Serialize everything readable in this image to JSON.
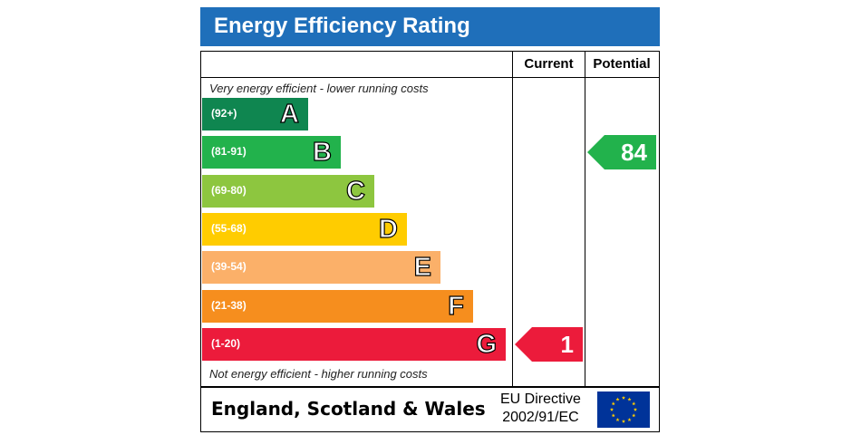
{
  "title": "Energy Efficiency Rating",
  "columns": {
    "current": "Current",
    "potential": "Potential"
  },
  "top_note": "Very energy efficient - lower running costs",
  "bottom_note": "Not energy efficient - higher running costs",
  "colors": {
    "title_bar": "#1f6fba",
    "A": "#0f8650",
    "B": "#22b24c",
    "C": "#8dc63f",
    "D": "#ffcc00",
    "E": "#fbb069",
    "F": "#f68e1e",
    "G": "#ec1b3b"
  },
  "chart_data": {
    "type": "bar",
    "categories": [
      "A",
      "B",
      "C",
      "D",
      "E",
      "F",
      "G"
    ],
    "ranges": [
      "(92+)",
      "(81-91)",
      "(69-80)",
      "(55-68)",
      "(39-54)",
      "(21-38)",
      "(1-20)"
    ],
    "current": {
      "value": "1",
      "band": "G"
    },
    "potential": {
      "value": "84",
      "band": "B"
    }
  },
  "footer": {
    "country": "England, Scotland & Wales",
    "directive_line1": "EU Directive",
    "directive_line2": "2002/91/EC"
  }
}
